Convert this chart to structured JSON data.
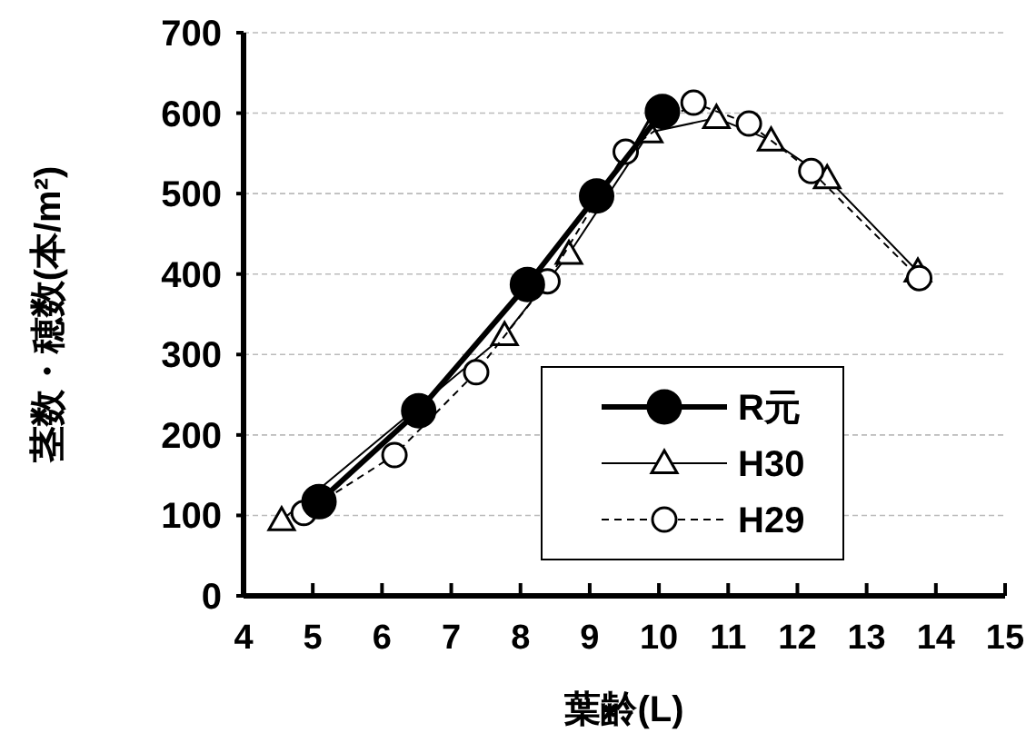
{
  "chart_data": {
    "type": "line",
    "xlabel": "葉齢(L)",
    "ylabel": "茎数・穂数(本/m²)",
    "xlim": [
      4,
      15
    ],
    "ylim": [
      0,
      700
    ],
    "xticks": [
      4,
      5,
      6,
      7,
      8,
      9,
      10,
      11,
      12,
      13,
      14,
      15
    ],
    "yticks": [
      0,
      100,
      200,
      300,
      400,
      500,
      600,
      700
    ],
    "grid": "y",
    "legend": "bottom right",
    "series": [
      {
        "name": "R元",
        "color": "#000000",
        "marker": "circle",
        "line_style": "solid",
        "x": [
          5.09,
          6.53,
          8.1,
          9.1,
          10.05
        ],
        "values": [
          117,
          230,
          387,
          497,
          602
        ]
      },
      {
        "name": "H30",
        "color": "#000000",
        "marker": "triangle",
        "line_style": "solid",
        "x": [
          4.55,
          7.77,
          8.7,
          9.86,
          10.83,
          11.62,
          12.43,
          13.74
        ],
        "values": [
          94,
          324,
          425,
          576,
          594,
          566,
          519,
          403
        ]
      },
      {
        "name": "H29",
        "color": "#000000",
        "marker": "circle",
        "line_style": "dashed",
        "x": [
          4.87,
          6.18,
          7.36,
          8.39,
          9.52,
          10.5,
          11.3,
          12.2,
          13.76
        ],
        "values": [
          103,
          175,
          278,
          391,
          552,
          613,
          587,
          528,
          395
        ]
      }
    ]
  }
}
